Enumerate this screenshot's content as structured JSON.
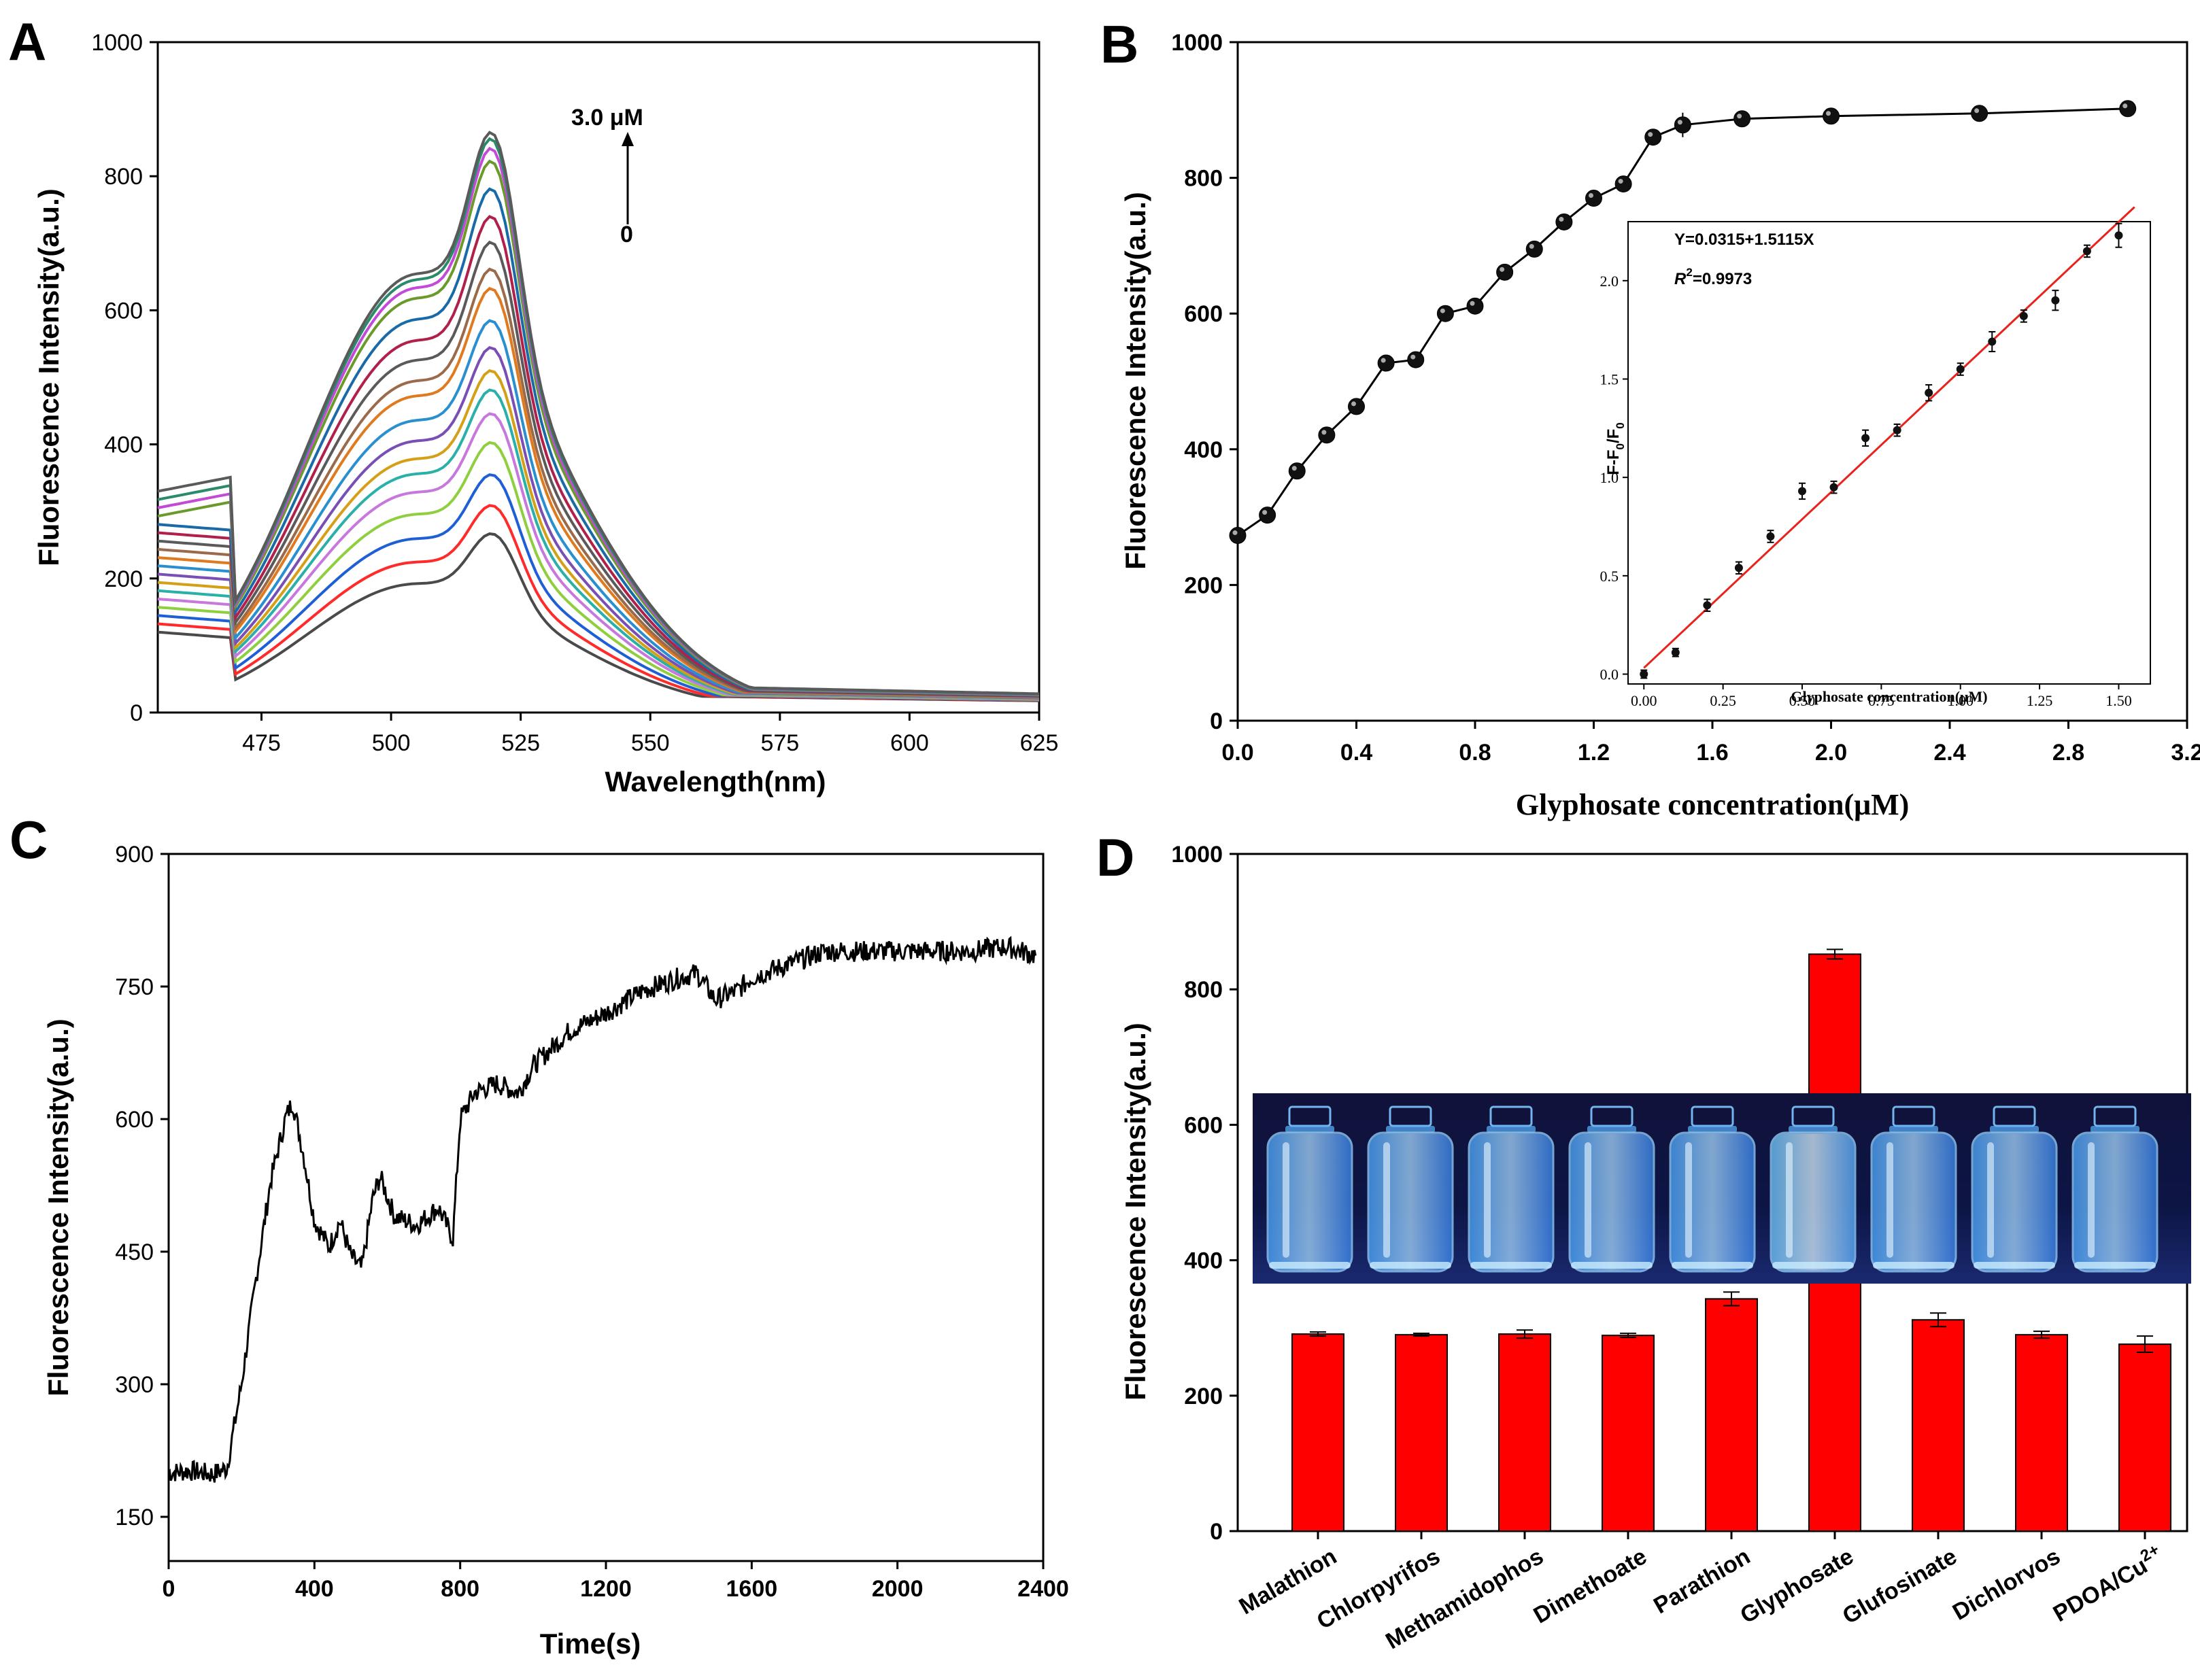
{
  "chart_data": [
    {
      "id": "A",
      "type": "line",
      "panel_label": "A",
      "xlabel": "Wavelength(nm)",
      "ylabel": "Fluorescence Intensity(a.u.)",
      "xlim": [
        455,
        625
      ],
      "ylim": [
        0,
        1000
      ],
      "xticks": [
        475,
        500,
        525,
        550,
        575,
        600,
        625
      ],
      "yticks": [
        0,
        200,
        400,
        600,
        800,
        1000
      ],
      "annotation_top": "3.0 μM",
      "annotation_bottom": "0",
      "peak_values": [
        278,
        322,
        370,
        420,
        465,
        502,
        532,
        568,
        610,
        660,
        690,
        732,
        772,
        815,
        858,
        878,
        893,
        903
      ],
      "colors": [
        "#4a4a4a",
        "#ff2a2a",
        "#1f5fd6",
        "#8fcf3f",
        "#c678dd",
        "#2ab0a8",
        "#d4a017",
        "#7a4fb5",
        "#2a8fcf",
        "#e07a1f",
        "#9a6a4a",
        "#5a5a5a",
        "#b0204a",
        "#1a6aa8",
        "#6a9a2a",
        "#c24ad6",
        "#2a8a6a",
        "#5a5a5a"
      ],
      "series_note": "18 emission spectra for glyphosate concentrations 0 to 3.0 μM"
    },
    {
      "id": "B",
      "type": "scatter",
      "panel_label": "B",
      "xlabel": "Glyphosate concentration(μM)",
      "ylabel": "Fluorescence Intensity(a.u.)",
      "xlim": [
        0,
        3.2
      ],
      "ylim": [
        0,
        1000
      ],
      "xticks": [
        "0.0",
        "0.4",
        "0.8",
        "1.2",
        "1.6",
        "2.0",
        "2.4",
        "2.8",
        "3.2"
      ],
      "yticks": [
        "0",
        "200",
        "400",
        "600",
        "800",
        "1000"
      ],
      "x": [
        0.0,
        0.1,
        0.2,
        0.3,
        0.4,
        0.5,
        0.6,
        0.7,
        0.8,
        0.9,
        1.0,
        1.1,
        1.2,
        1.3,
        1.4,
        1.5,
        1.7,
        2.0,
        2.5,
        3.0
      ],
      "y": [
        273,
        303,
        368,
        421,
        463,
        527,
        532,
        600,
        611,
        661,
        695,
        735,
        770,
        791,
        860,
        878,
        887,
        891,
        895,
        902
      ],
      "errors": [
        3,
        3,
        3,
        3,
        3,
        3,
        3,
        3,
        3,
        3,
        3,
        3,
        3,
        6,
        3,
        12,
        3,
        3,
        3,
        3
      ],
      "inset": {
        "type": "scatter",
        "xlabel": "Glyphosate concentration(μM)",
        "ylabel_main": "F-F",
        "ylabel_sub": "0",
        "ylabel_div": "/F",
        "equation": "Y=0.0315+1.5115X",
        "r2_label": "R",
        "r2_sup": "2",
        "r2_value": "=0.9973",
        "xlim": [
          -0.05,
          1.6
        ],
        "ylim": [
          -0.05,
          2.3
        ],
        "xticks": [
          "0.00",
          "0.25",
          "0.50",
          "0.75",
          "1.00",
          "1.25",
          "1.50"
        ],
        "yticks": [
          "0.0",
          "0.5",
          "1.0",
          "1.5",
          "2.0"
        ],
        "x": [
          0.0,
          0.1,
          0.2,
          0.3,
          0.4,
          0.5,
          0.6,
          0.7,
          0.8,
          0.9,
          1.0,
          1.1,
          1.2,
          1.3,
          1.4,
          1.5
        ],
        "y": [
          0.0,
          0.11,
          0.35,
          0.54,
          0.7,
          0.93,
          0.95,
          1.2,
          1.24,
          1.43,
          1.55,
          1.69,
          1.82,
          1.9,
          2.15,
          2.23
        ],
        "errors": [
          0.01,
          0.01,
          0.02,
          0.02,
          0.02,
          0.03,
          0.02,
          0.03,
          0.02,
          0.03,
          0.02,
          0.04,
          0.02,
          0.04,
          0.02,
          0.05
        ],
        "fit_intercept": 0.0315,
        "fit_slope": 1.5115,
        "fit_color": "#e8231e"
      }
    },
    {
      "id": "C",
      "type": "line",
      "panel_label": "C",
      "xlabel": "Time(s)",
      "ylabel": "Fluorescence Intensity(a.u.)",
      "xlim": [
        0,
        2400
      ],
      "ylim": [
        100,
        900
      ],
      "xticks": [
        "0",
        "400",
        "800",
        "1200",
        "1600",
        "2000",
        "2400"
      ],
      "yticks": [
        "150",
        "300",
        "450",
        "600",
        "750",
        "900"
      ],
      "x": [
        0,
        60,
        120,
        160,
        200,
        240,
        280,
        320,
        340,
        370,
        400,
        440,
        470,
        500,
        530,
        560,
        580,
        620,
        680,
        740,
        780,
        800,
        840,
        900,
        960,
        1000,
        1100,
        1200,
        1300,
        1400,
        1450,
        1500,
        1560,
        1600,
        1700,
        1800,
        1900,
        2000,
        2100,
        2200,
        2300,
        2380
      ],
      "y": [
        200,
        202,
        198,
        205,
        300,
        420,
        530,
        600,
        620,
        560,
        485,
        455,
        485,
        445,
        430,
        510,
        535,
        490,
        480,
        500,
        465,
        600,
        630,
        640,
        630,
        660,
        700,
        720,
        745,
        760,
        765,
        735,
        745,
        760,
        775,
        790,
        790,
        790,
        790,
        790,
        795,
        785
      ],
      "noise_amplitude": 12
    },
    {
      "id": "D",
      "type": "bar",
      "panel_label": "D",
      "ylabel": "Fluorescence Intensity(a.u.)",
      "ylim": [
        0,
        1000
      ],
      "yticks": [
        "0",
        "200",
        "400",
        "600",
        "800",
        "1000"
      ],
      "categories": [
        "Malathion",
        "Chlorpyrifos",
        "Methamidophos",
        "Dimethoate",
        "Parathion",
        "Glyphosate",
        "Glufosinate",
        "Dichlorvos",
        "PDOA/Cu"
      ],
      "category_sup": [
        "",
        "",
        "",
        "",
        "",
        "",
        "",
        "",
        "2+"
      ],
      "values": [
        291,
        290,
        291,
        289,
        343,
        852,
        312,
        290,
        276
      ],
      "errors": [
        3,
        2,
        6,
        3,
        10,
        7,
        10,
        5,
        12
      ],
      "bar_color": "#ff0000"
    }
  ]
}
